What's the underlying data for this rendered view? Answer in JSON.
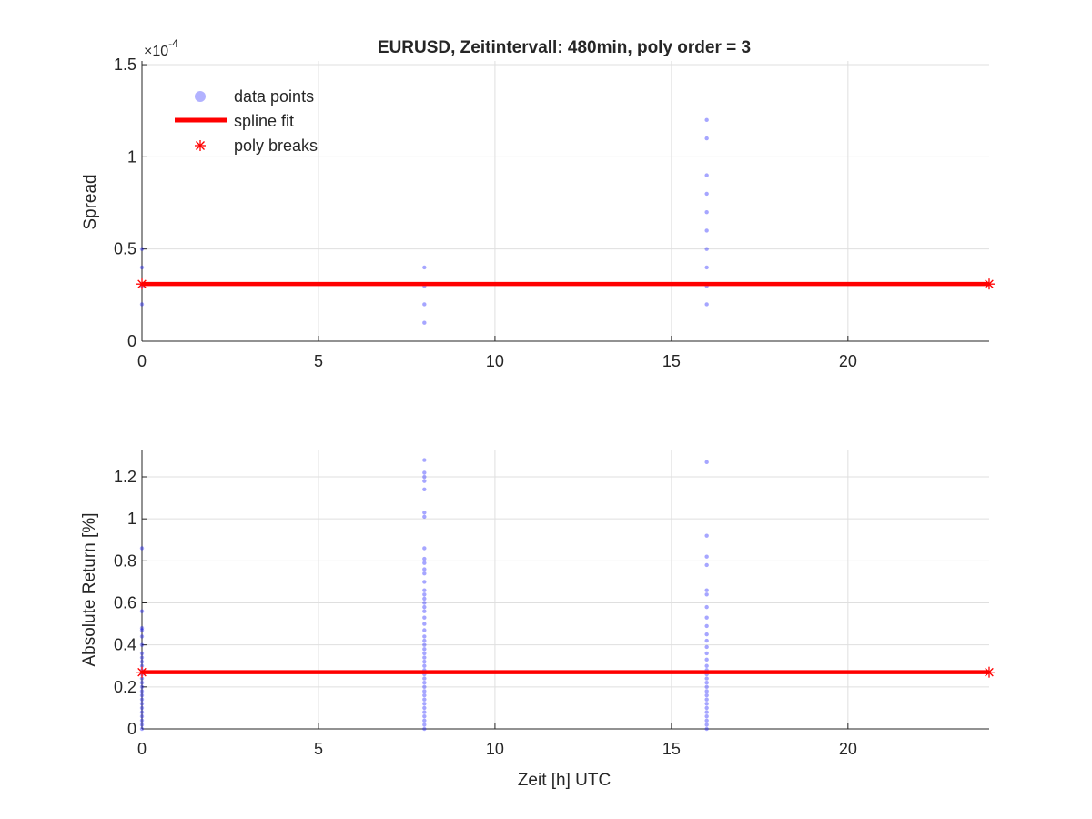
{
  "colors": {
    "points": "#0000ff",
    "fit": "#ff0000",
    "breaks": "#ff0000",
    "axis": "#262626",
    "grid": "#dfdfdf"
  },
  "chart_data": [
    {
      "type": "scatter",
      "title": "EURUSD, Zeitintervall: 480min, poly order = 3",
      "xlabel": "",
      "ylabel": "Spread",
      "exponent_label": "×10^-4",
      "xlim": [
        0,
        24
      ],
      "ylim": [
        0,
        1.52
      ],
      "x_ticks": [
        0,
        5,
        10,
        15,
        20
      ],
      "x_tick_labels": [
        "0",
        "5",
        "10",
        "15",
        "20"
      ],
      "y_ticks": [
        0,
        0.5,
        1,
        1.5
      ],
      "y_tick_labels": [
        "0",
        "0.5",
        "1",
        "1.5"
      ],
      "grid": true,
      "legend": {
        "placement": "top-left",
        "entries": [
          {
            "label": "data points",
            "marker": "dot"
          },
          {
            "label": "spline fit",
            "marker": "line"
          },
          {
            "label": "poly breaks",
            "marker": "asterisk"
          }
        ]
      },
      "series": [
        {
          "name": "data points",
          "points": [
            [
              0,
              0.2
            ],
            [
              0,
              0.3
            ],
            [
              0,
              0.4
            ],
            [
              0,
              0.5
            ],
            [
              8,
              0.1
            ],
            [
              8,
              0.2
            ],
            [
              8,
              0.3
            ],
            [
              8,
              0.4
            ],
            [
              16,
              0.2
            ],
            [
              16,
              0.3
            ],
            [
              16,
              0.4
            ],
            [
              16,
              0.5
            ],
            [
              16,
              0.6
            ],
            [
              16,
              0.7
            ],
            [
              16,
              0.8
            ],
            [
              16,
              0.9
            ],
            [
              16,
              1.1
            ],
            [
              16,
              1.2
            ]
          ]
        },
        {
          "name": "spline fit",
          "x": [
            0,
            24
          ],
          "y": [
            0.31,
            0.31
          ]
        },
        {
          "name": "poly breaks",
          "x": [
            0,
            24
          ],
          "y": [
            0.31,
            0.31
          ]
        }
      ]
    },
    {
      "type": "scatter",
      "title": "",
      "xlabel": "Zeit [h] UTC",
      "ylabel": "Absolute Return [%]",
      "xlim": [
        0,
        24
      ],
      "ylim": [
        0,
        1.33
      ],
      "x_ticks": [
        0,
        5,
        10,
        15,
        20
      ],
      "x_tick_labels": [
        "0",
        "5",
        "10",
        "15",
        "20"
      ],
      "y_ticks": [
        0,
        0.2,
        0.4,
        0.6,
        0.8,
        1,
        1.2
      ],
      "y_tick_labels": [
        "0",
        "0.2",
        "0.4",
        "0.6",
        "0.8",
        "1",
        "1.2"
      ],
      "grid": true,
      "series": [
        {
          "name": "data points",
          "points": [
            [
              0,
              0.0
            ],
            [
              0,
              0.02
            ],
            [
              0,
              0.04
            ],
            [
              0,
              0.06
            ],
            [
              0,
              0.08
            ],
            [
              0,
              0.1
            ],
            [
              0,
              0.12
            ],
            [
              0,
              0.14
            ],
            [
              0,
              0.16
            ],
            [
              0,
              0.18
            ],
            [
              0,
              0.2
            ],
            [
              0,
              0.22
            ],
            [
              0,
              0.24
            ],
            [
              0,
              0.26
            ],
            [
              0,
              0.28
            ],
            [
              0,
              0.3
            ],
            [
              0,
              0.32
            ],
            [
              0,
              0.34
            ],
            [
              0,
              0.36
            ],
            [
              0,
              0.4
            ],
            [
              0,
              0.44
            ],
            [
              0,
              0.47
            ],
            [
              0,
              0.48
            ],
            [
              0,
              0.56
            ],
            [
              0,
              0.86
            ],
            [
              8,
              0.0
            ],
            [
              8,
              0.02
            ],
            [
              8,
              0.04
            ],
            [
              8,
              0.06
            ],
            [
              8,
              0.08
            ],
            [
              8,
              0.1
            ],
            [
              8,
              0.12
            ],
            [
              8,
              0.14
            ],
            [
              8,
              0.16
            ],
            [
              8,
              0.18
            ],
            [
              8,
              0.2
            ],
            [
              8,
              0.22
            ],
            [
              8,
              0.24
            ],
            [
              8,
              0.26
            ],
            [
              8,
              0.28
            ],
            [
              8,
              0.3
            ],
            [
              8,
              0.32
            ],
            [
              8,
              0.34
            ],
            [
              8,
              0.36
            ],
            [
              8,
              0.38
            ],
            [
              8,
              0.4
            ],
            [
              8,
              0.42
            ],
            [
              8,
              0.44
            ],
            [
              8,
              0.47
            ],
            [
              8,
              0.5
            ],
            [
              8,
              0.53
            ],
            [
              8,
              0.56
            ],
            [
              8,
              0.58
            ],
            [
              8,
              0.6
            ],
            [
              8,
              0.62
            ],
            [
              8,
              0.64
            ],
            [
              8,
              0.66
            ],
            [
              8,
              0.7
            ],
            [
              8,
              0.74
            ],
            [
              8,
              0.76
            ],
            [
              8,
              0.79
            ],
            [
              8,
              0.81
            ],
            [
              8,
              0.86
            ],
            [
              8,
              1.01
            ],
            [
              8,
              1.03
            ],
            [
              8,
              1.14
            ],
            [
              8,
              1.18
            ],
            [
              8,
              1.2
            ],
            [
              8,
              1.22
            ],
            [
              8,
              1.28
            ],
            [
              16,
              0.0
            ],
            [
              16,
              0.02
            ],
            [
              16,
              0.04
            ],
            [
              16,
              0.06
            ],
            [
              16,
              0.08
            ],
            [
              16,
              0.1
            ],
            [
              16,
              0.12
            ],
            [
              16,
              0.14
            ],
            [
              16,
              0.16
            ],
            [
              16,
              0.18
            ],
            [
              16,
              0.2
            ],
            [
              16,
              0.22
            ],
            [
              16,
              0.24
            ],
            [
              16,
              0.26
            ],
            [
              16,
              0.28
            ],
            [
              16,
              0.3
            ],
            [
              16,
              0.33
            ],
            [
              16,
              0.36
            ],
            [
              16,
              0.39
            ],
            [
              16,
              0.42
            ],
            [
              16,
              0.45
            ],
            [
              16,
              0.49
            ],
            [
              16,
              0.53
            ],
            [
              16,
              0.58
            ],
            [
              16,
              0.64
            ],
            [
              16,
              0.66
            ],
            [
              16,
              0.78
            ],
            [
              16,
              0.82
            ],
            [
              16,
              0.92
            ],
            [
              16,
              1.27
            ]
          ]
        },
        {
          "name": "spline fit",
          "x": [
            0,
            24
          ],
          "y": [
            0.27,
            0.27
          ]
        },
        {
          "name": "poly breaks",
          "x": [
            0,
            24
          ],
          "y": [
            0.27,
            0.27
          ]
        }
      ]
    }
  ]
}
